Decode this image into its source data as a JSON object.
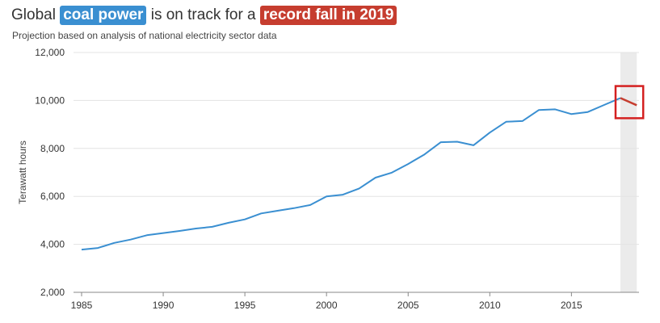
{
  "title": {
    "prefix": "Global",
    "highlight_1": "coal power",
    "middle": "is on track for a",
    "highlight_2": "record fall in 2019"
  },
  "subtitle": "Projection based on analysis of national electricity sector data",
  "colors": {
    "series": "#3a8fd1",
    "projection": "#c63d2f",
    "highlight_box": "#d42020",
    "projection_band": "#ebebeb"
  },
  "chart_data": {
    "type": "line",
    "ylabel": "Terawatt hours",
    "xlabel": "",
    "xlim": [
      1985,
      2019.2
    ],
    "ylim": [
      2000,
      12000
    ],
    "x_ticks": [
      1985,
      1990,
      1995,
      2000,
      2005,
      2010,
      2015
    ],
    "y_ticks": [
      2000,
      4000,
      6000,
      8000,
      10000,
      12000
    ],
    "y_tick_labels": [
      "2,000",
      "4,000",
      "6,000",
      "8,000",
      "10,000",
      "12,000"
    ],
    "grid": "horizontal",
    "shaded_x_range": [
      2018,
      2019
    ],
    "highlight_box_x_range": [
      2018,
      2019
    ],
    "series": [
      {
        "x": [
          1985,
          1986,
          1987,
          1988,
          1989,
          1990,
          1991,
          1992,
          1993,
          1994,
          1995,
          1996,
          1997,
          1998,
          1999,
          2000,
          2001,
          2002,
          2003,
          2004,
          2005,
          2006,
          2007,
          2008,
          2009,
          2010,
          2011,
          2012,
          2013,
          2014,
          2015,
          2016,
          2017,
          2018
        ],
        "values": [
          3780,
          3850,
          4060,
          4200,
          4380,
          4470,
          4560,
          4660,
          4730,
          4900,
          5040,
          5290,
          5400,
          5510,
          5640,
          6000,
          6070,
          6330,
          6780,
          6990,
          7350,
          7750,
          8260,
          8280,
          8130,
          8660,
          9110,
          9140,
          9600,
          9630,
          9430,
          9520,
          9810,
          10100
        ]
      },
      {
        "x": [
          2018,
          2019
        ],
        "values": [
          10100,
          9800
        ]
      }
    ]
  }
}
